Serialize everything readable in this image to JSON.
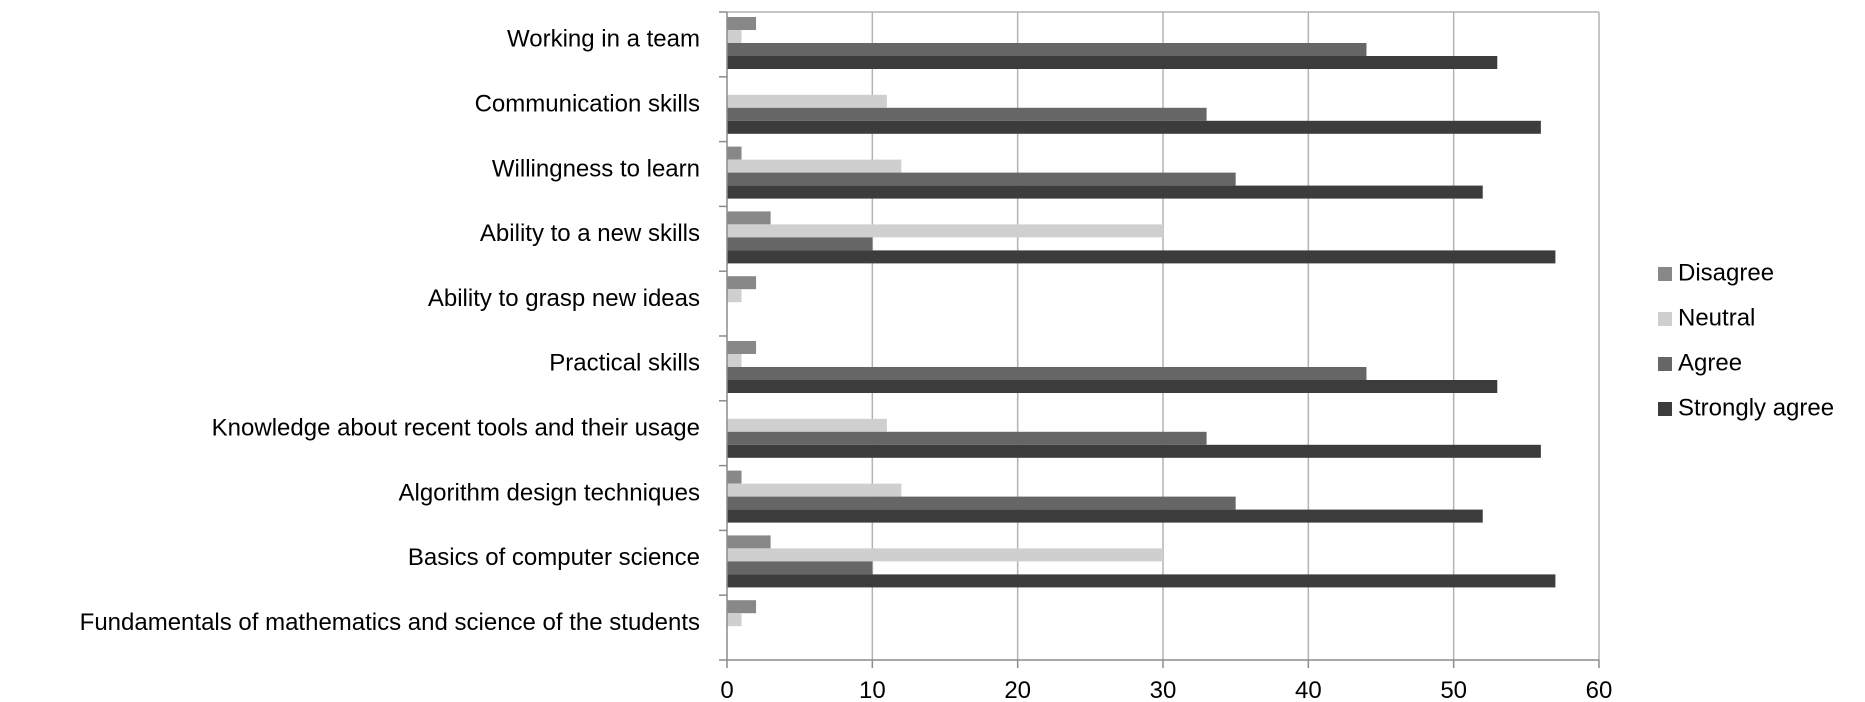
{
  "chart_data": {
    "type": "bar",
    "orientation": "horizontal",
    "categories": [
      "Working in a team",
      "Communication skills",
      "Willingness  to learn",
      "Ability to a new skills",
      "Ability to grasp  new ideas",
      "Practical skills",
      "Knowledge about recent tools and their usage",
      "Algorithm design techniques ",
      "Basics of computer science",
      "Fundamentals of mathematics and science of the students"
    ],
    "series": [
      {
        "name": "Disagree",
        "color": "#888888",
        "values": [
          2,
          0,
          1,
          3,
          2,
          2,
          0,
          1,
          3,
          2
        ]
      },
      {
        "name": "Neutral",
        "color": "#cfcfcf",
        "values": [
          1,
          11,
          12,
          30,
          1,
          1,
          11,
          12,
          30,
          1
        ]
      },
      {
        "name": "Agree",
        "color": "#666666",
        "values": [
          44,
          33,
          35,
          10,
          0,
          44,
          33,
          35,
          10,
          0
        ]
      },
      {
        "name": "Strongly agree",
        "color": "#3c3c3c",
        "values": [
          53,
          56,
          52,
          57,
          0,
          53,
          56,
          52,
          57,
          0
        ]
      }
    ],
    "xlim": [
      0,
      60
    ],
    "xticks": [
      0,
      10,
      20,
      30,
      40,
      50,
      60
    ],
    "title": "",
    "xlabel": "",
    "ylabel": "",
    "grid": true,
    "legend_position": "right"
  }
}
